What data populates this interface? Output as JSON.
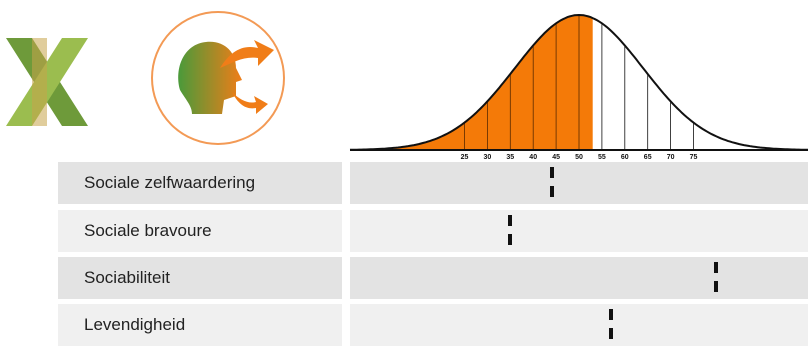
{
  "logos": {
    "x_logo_icon": "x-logo-icon",
    "circle_logo_icon": "head-arrows-icon"
  },
  "colors": {
    "fill": "#f47a08",
    "accent_circle": "#f39a55",
    "row_a": "#e3e3e3",
    "row_b": "#f0f0f0",
    "marker": "#111111"
  },
  "chart_data": {
    "type": "area",
    "curve": "normal-distribution",
    "mean": 50,
    "x_ticks": [
      25,
      30,
      35,
      40,
      45,
      50,
      55,
      60,
      65,
      70,
      75
    ],
    "shaded_up_to": 53,
    "xlim": [
      0,
      100
    ],
    "rows": [
      {
        "label": "Sociale zelfwaardering",
        "value": 44
      },
      {
        "label": "Sociale bravoure",
        "value": 35
      },
      {
        "label": "Sociabiliteit",
        "value": 80
      },
      {
        "label": "Levendigheid",
        "value": 57
      }
    ]
  }
}
